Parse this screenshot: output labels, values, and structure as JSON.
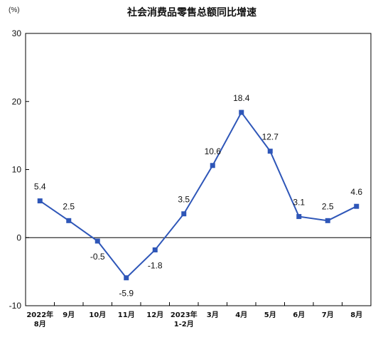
{
  "chart_data": {
    "type": "line",
    "title": "社会消费品零售总额同比增速",
    "unit_label": "(%)",
    "xlabel": "",
    "ylabel": "",
    "categories": [
      [
        "2022年",
        "8月"
      ],
      [
        "9月"
      ],
      [
        "10月"
      ],
      [
        "11月"
      ],
      [
        "12月"
      ],
      [
        "2023年",
        "1-2月"
      ],
      [
        "3月"
      ],
      [
        "4月"
      ],
      [
        "5月"
      ],
      [
        "6月"
      ],
      [
        "7月"
      ],
      [
        "8月"
      ]
    ],
    "values": [
      5.4,
      2.5,
      -0.5,
      -5.9,
      -1.8,
      3.5,
      10.6,
      18.4,
      12.7,
      3.1,
      2.5,
      4.6
    ],
    "data_labels": [
      "5.4",
      "2.5",
      "-0.5",
      "-5.9",
      "-1.8",
      "3.5",
      "10.6",
      "18.4",
      "12.7",
      "3.1",
      "2.5",
      "4.6"
    ],
    "ylim": [
      -10,
      30
    ],
    "yticks": [
      -10,
      0,
      10,
      20,
      30
    ],
    "grid": false,
    "legend": "none",
    "line_color": "#2e56b8",
    "marker_color": "#2e56b8",
    "axis_color": "#000000"
  }
}
